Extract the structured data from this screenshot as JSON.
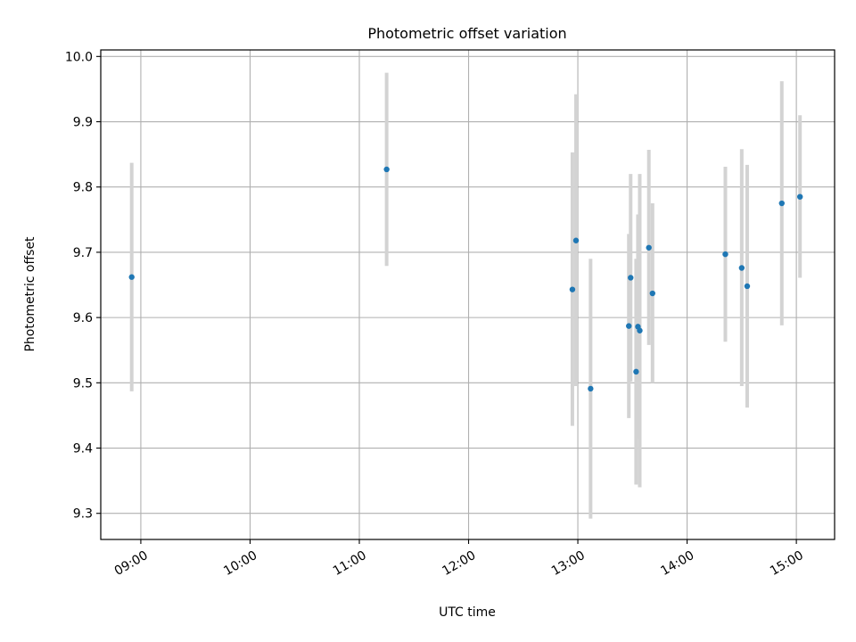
{
  "chart_data": {
    "type": "scatter",
    "title": "Photometric offset variation",
    "xlabel": "UTC time",
    "ylabel": "Photometric offset",
    "x_ticks": [
      "09:00",
      "10:00",
      "11:00",
      "12:00",
      "13:00",
      "14:00",
      "15:00"
    ],
    "y_ticks": [
      "9.3",
      "9.4",
      "9.5",
      "9.6",
      "9.7",
      "9.8",
      "9.9",
      "10.0"
    ],
    "xlim": [
      "08:38",
      "15:21"
    ],
    "ylim": [
      9.26,
      10.01
    ],
    "grid": true,
    "colors": {
      "point": "#1f77b4",
      "errorbar": "#d3d3d3",
      "grid": "#b0b0b0"
    },
    "series": [
      {
        "points": [
          {
            "x": "08:55",
            "y": 9.662,
            "lo": 9.487,
            "hi": 9.837
          },
          {
            "x": "11:15",
            "y": 9.827,
            "lo": 9.679,
            "hi": 9.975
          },
          {
            "x": "12:57",
            "y": 9.643,
            "lo": 9.434,
            "hi": 9.853
          },
          {
            "x": "12:59",
            "y": 9.718,
            "lo": 9.495,
            "hi": 9.942
          },
          {
            "x": "13:07",
            "y": 9.491,
            "lo": 9.292,
            "hi": 9.69
          },
          {
            "x": "13:28",
            "y": 9.587,
            "lo": 9.446,
            "hi": 9.728
          },
          {
            "x": "13:29",
            "y": 9.661,
            "lo": 9.502,
            "hi": 9.82
          },
          {
            "x": "13:32",
            "y": 9.517,
            "lo": 9.344,
            "hi": 9.69
          },
          {
            "x": "13:33",
            "y": 9.586,
            "lo": 9.414,
            "hi": 9.758
          },
          {
            "x": "13:34",
            "y": 9.58,
            "lo": 9.34,
            "hi": 9.82
          },
          {
            "x": "13:39",
            "y": 9.707,
            "lo": 9.558,
            "hi": 9.857
          },
          {
            "x": "13:41",
            "y": 9.637,
            "lo": 9.5,
            "hi": 9.775
          },
          {
            "x": "14:21",
            "y": 9.697,
            "lo": 9.563,
            "hi": 9.831
          },
          {
            "x": "14:30",
            "y": 9.676,
            "lo": 9.495,
            "hi": 9.858
          },
          {
            "x": "14:33",
            "y": 9.648,
            "lo": 9.462,
            "hi": 9.834
          },
          {
            "x": "14:52",
            "y": 9.775,
            "lo": 9.588,
            "hi": 9.962
          },
          {
            "x": "15:02",
            "y": 9.785,
            "lo": 9.661,
            "hi": 9.91
          }
        ]
      }
    ]
  }
}
